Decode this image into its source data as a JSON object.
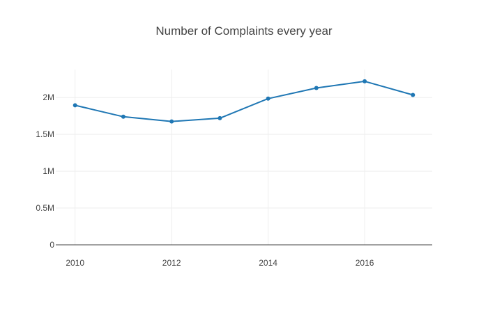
{
  "colors": {
    "background": "#ffffff",
    "grid": "#eeeeee",
    "axis": "#444444",
    "series_line": "#1f77b4",
    "text": "#444444"
  },
  "chart_data": {
    "type": "line",
    "title": "Number of Complaints every year",
    "xlabel": "",
    "ylabel": "",
    "x": [
      2010,
      2011,
      2012,
      2013,
      2014,
      2015,
      2016,
      2017
    ],
    "series": [
      {
        "values": [
          1895000,
          1740000,
          1675000,
          1720000,
          1985000,
          2130000,
          2220000,
          2035000
        ]
      }
    ],
    "xlim": [
      2009.6,
      2017.4
    ],
    "ylim": [
      0,
      2380000
    ],
    "x_ticks": [
      2010,
      2012,
      2014,
      2016
    ],
    "x_tick_labels": [
      "2010",
      "2012",
      "2014",
      "2016"
    ],
    "y_ticks": [
      0,
      500000,
      1000000,
      1500000,
      2000000
    ],
    "y_tick_labels": [
      "0",
      "0.5M",
      "1M",
      "1.5M",
      "2M"
    ],
    "grid": true,
    "legend": "none",
    "markers": true
  }
}
